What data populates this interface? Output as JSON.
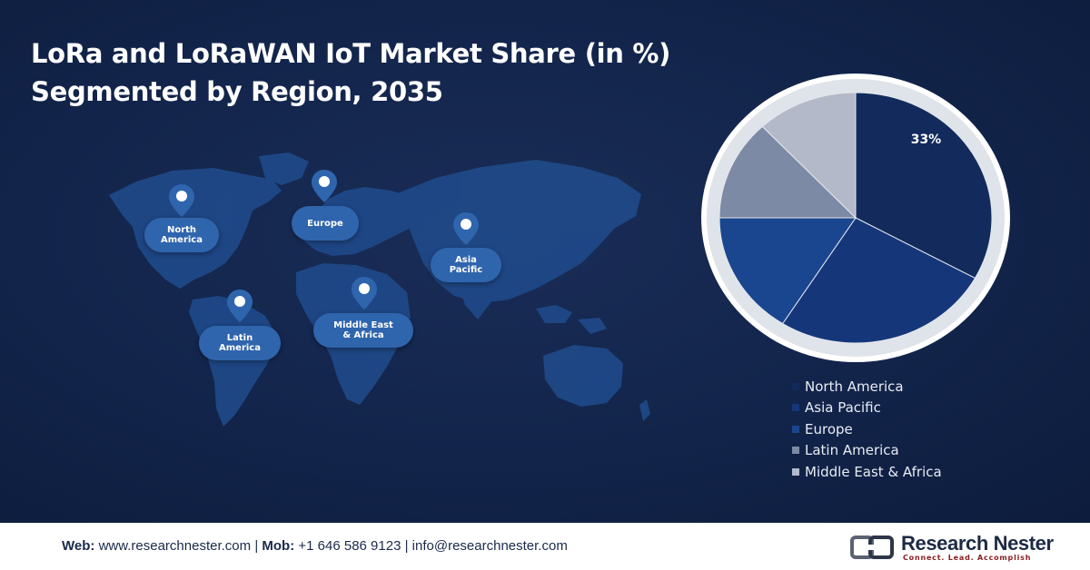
{
  "title": {
    "line1": "LoRa and LoRaWAN IoT Market Share (in %)",
    "line2": "Segmented by Region, 2035"
  },
  "map": {
    "labels": {
      "north_america": "North America",
      "europe": "Europe",
      "asia_pacific": "Asia Pacific",
      "latin_america": "Latin America",
      "middle_east_africa": "Middle East & Africa"
    }
  },
  "chart_data": {
    "type": "pie",
    "title": "LoRa and LoRaWAN IoT Market Share (in %) Segmented by Region, 2035",
    "categories": [
      "North America",
      "Asia Pacific",
      "Europe",
      "Latin America",
      "Middle East & Africa"
    ],
    "values": [
      33,
      26,
      16,
      13,
      12
    ],
    "colors": [
      "#122b5c",
      "#15377a",
      "#1a4690",
      "#7d8aa6",
      "#b3b9c9"
    ],
    "data_labels": [
      "33%",
      "",
      "",
      "",
      ""
    ],
    "legend_position": "bottom"
  },
  "footer": {
    "web_label": "Web:",
    "web": "www.researchnester.com",
    "sep1": "|",
    "mob_label": "Mob:",
    "mob": "+1 646 586 9123",
    "sep2": "|",
    "email": "info@researchnester.com",
    "logo_name": "Research Nester",
    "logo_tagline": "Connect. Lead. Accomplish"
  }
}
